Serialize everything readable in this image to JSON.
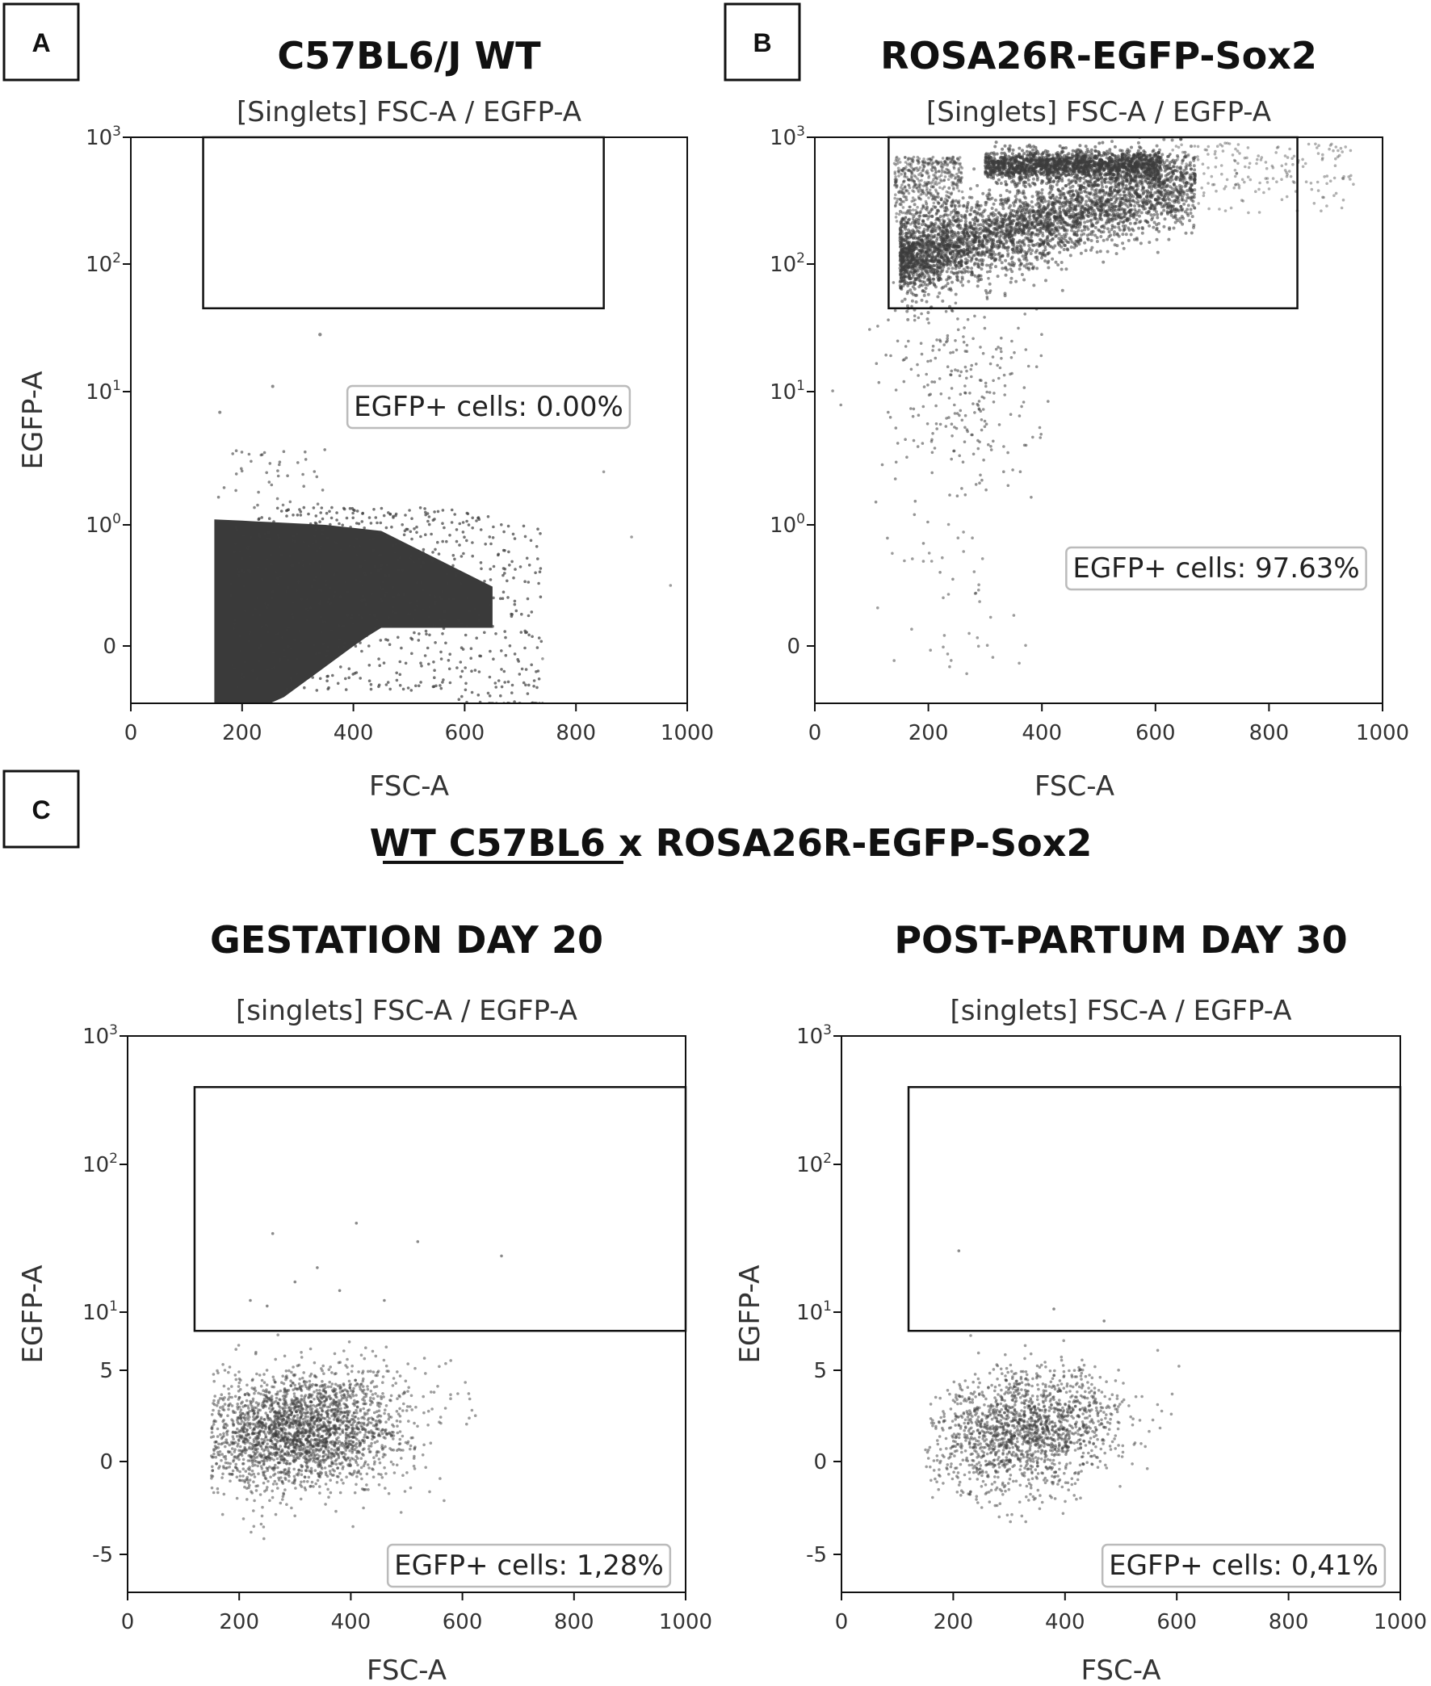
{
  "section_heading": {
    "underlined": "WT C57BL6",
    "rest": " x ROSA26R-EGFP-Sox2"
  },
  "colors": {
    "dots": "#3c3c3c",
    "frame": "#111111",
    "gate": "#111111"
  },
  "chart_data": [
    {
      "type": "scatter",
      "panel_letter": "A",
      "title": "C57BL6/J WT",
      "subtitle": "[Singlets] FSC-A / EGFP-A",
      "xlabel": "FSC-A",
      "ylabel": "EGFP-A",
      "xlim": [
        0,
        1000
      ],
      "x_ticks": [
        0,
        200,
        400,
        600,
        800,
        1000
      ],
      "y_scale": "biexponential",
      "y_ticks": [
        {
          "value": 0,
          "label": "0"
        },
        {
          "value": 1,
          "label": "10",
          "sup": "0"
        },
        {
          "value": 10,
          "label": "10",
          "sup": "1"
        },
        {
          "value": 100,
          "label": "10",
          "sup": "2"
        },
        {
          "value": 1000,
          "label": "10",
          "sup": "3"
        }
      ],
      "gate": {
        "x": [
          130,
          850
        ],
        "y": [
          45,
          1000
        ]
      },
      "stat_label": "EGFP+ cells: 0.00%",
      "populations": [
        {
          "description": "dense negative population",
          "x_range": [
            150,
            700
          ],
          "y_range": [
            -0.3,
            1.2
          ]
        }
      ]
    },
    {
      "type": "scatter",
      "panel_letter": "B",
      "title": "ROSA26R-EGFP-Sox2",
      "subtitle": "[Singlets] FSC-A / EGFP-A",
      "xlabel": "FSC-A",
      "xlim": [
        0,
        1000
      ],
      "x_ticks": [
        0,
        200,
        400,
        600,
        800,
        1000
      ],
      "y_scale": "biexponential",
      "y_ticks": [
        {
          "value": 0,
          "label": "0"
        },
        {
          "value": 1,
          "label": "10",
          "sup": "0"
        },
        {
          "value": 10,
          "label": "10",
          "sup": "1"
        },
        {
          "value": 100,
          "label": "10",
          "sup": "2"
        },
        {
          "value": 1000,
          "label": "10",
          "sup": "3"
        }
      ],
      "gate": {
        "x": [
          130,
          850
        ],
        "y": [
          45,
          1000
        ]
      },
      "stat_label": "EGFP+ cells: 97.63%",
      "populations": [
        {
          "description": "EGFP+ main population",
          "x_range": [
            150,
            700
          ],
          "y_range": [
            60,
            400
          ]
        },
        {
          "description": "EGFP bright population",
          "x_range": [
            300,
            600
          ],
          "y_range": [
            450,
            800
          ]
        }
      ]
    },
    {
      "type": "scatter",
      "title": "GESTATION DAY 20",
      "subtitle": "[singlets] FSC-A / EGFP-A",
      "xlabel": "FSC-A",
      "ylabel": "EGFP-A",
      "xlim": [
        0,
        1000
      ],
      "x_ticks": [
        0,
        200,
        400,
        600,
        800,
        1000
      ],
      "y_scale": "biexponential",
      "y_ticks": [
        {
          "value": -5,
          "label": "-5"
        },
        {
          "value": 0,
          "label": "0"
        },
        {
          "value": 5,
          "label": "5"
        },
        {
          "value": 10,
          "label": "10",
          "sup": "1"
        },
        {
          "value": 100,
          "label": "10",
          "sup": "2"
        },
        {
          "value": 1000,
          "label": "10",
          "sup": "3"
        }
      ],
      "gate": {
        "x": [
          120,
          1000
        ],
        "y": [
          8,
          400
        ]
      },
      "stat_label": "EGFP+ cells: 1,28%",
      "populations": [
        {
          "description": "EGFP- cells",
          "x_range": [
            150,
            700
          ],
          "y_range": [
            -3,
            7
          ]
        }
      ]
    },
    {
      "type": "scatter",
      "title": "POST-PARTUM DAY 30",
      "subtitle": "[singlets] FSC-A / EGFP-A",
      "xlabel": "FSC-A",
      "ylabel": "EGFP-A",
      "xlim": [
        0,
        1000
      ],
      "x_ticks": [
        0,
        200,
        400,
        600,
        800,
        1000
      ],
      "y_scale": "biexponential",
      "y_ticks": [
        {
          "value": -5,
          "label": "-5"
        },
        {
          "value": 0,
          "label": "0"
        },
        {
          "value": 5,
          "label": "5"
        },
        {
          "value": 10,
          "label": "10",
          "sup": "1"
        },
        {
          "value": 100,
          "label": "10",
          "sup": "2"
        },
        {
          "value": 1000,
          "label": "10",
          "sup": "3"
        }
      ],
      "gate": {
        "x": [
          120,
          1000
        ],
        "y": [
          8,
          400
        ]
      },
      "stat_label": "EGFP+ cells: 0,41%",
      "populations": [
        {
          "description": "EGFP- cells",
          "x_range": [
            160,
            700
          ],
          "y_range": [
            -3,
            6
          ]
        }
      ]
    }
  ]
}
